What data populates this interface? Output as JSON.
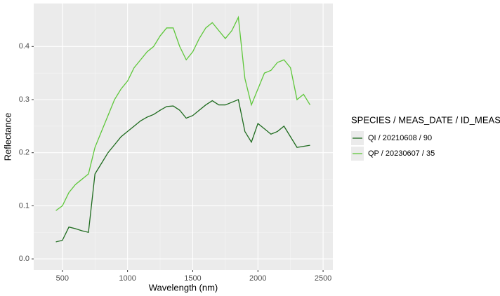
{
  "chart_data": {
    "type": "line",
    "x_label": "Wavelength (nm)",
    "y_label": "Reflectance",
    "legend_title": "SPECIES / MEAS_DATE / ID_MEAS",
    "legend": "right",
    "grid": true,
    "x": [
      450,
      500,
      550,
      600,
      650,
      700,
      750,
      800,
      850,
      900,
      950,
      1000,
      1050,
      1100,
      1150,
      1200,
      1250,
      1300,
      1350,
      1400,
      1450,
      1500,
      1550,
      1600,
      1650,
      1700,
      1750,
      1800,
      1850,
      1900,
      1950,
      2000,
      2050,
      2100,
      2150,
      2200,
      2250,
      2300,
      2350,
      2400
    ],
    "series": [
      {
        "name": "QI / 20210608 / 90",
        "color": "#1e6b1e",
        "values": [
          0.032,
          0.035,
          0.06,
          0.057,
          0.053,
          0.05,
          0.16,
          0.18,
          0.2,
          0.215,
          0.23,
          0.24,
          0.25,
          0.26,
          0.267,
          0.272,
          0.28,
          0.287,
          0.288,
          0.28,
          0.265,
          0.27,
          0.28,
          0.29,
          0.298,
          0.29,
          0.29,
          0.295,
          0.3,
          0.24,
          0.22,
          0.255,
          0.245,
          0.235,
          0.24,
          0.25,
          0.23,
          0.21,
          0.212,
          0.214
        ]
      },
      {
        "name": "QP / 20230607 / 35",
        "color": "#5ec73a",
        "values": [
          0.091,
          0.1,
          0.125,
          0.14,
          0.15,
          0.16,
          0.21,
          0.24,
          0.27,
          0.3,
          0.32,
          0.335,
          0.36,
          0.375,
          0.39,
          0.4,
          0.42,
          0.435,
          0.435,
          0.4,
          0.375,
          0.39,
          0.415,
          0.435,
          0.445,
          0.43,
          0.415,
          0.43,
          0.455,
          0.34,
          0.29,
          0.32,
          0.35,
          0.355,
          0.37,
          0.375,
          0.36,
          0.3,
          0.31,
          0.29
        ]
      }
    ],
    "xlim": [
      280,
      2575
    ],
    "xticks": [
      500,
      1000,
      1500,
      2000,
      2500
    ],
    "ylim": [
      -0.021,
      0.481
    ],
    "yticks": [
      {
        "value": 0,
        "label": "0.0"
      },
      0.1,
      0.2,
      0.3,
      0.4
    ]
  }
}
